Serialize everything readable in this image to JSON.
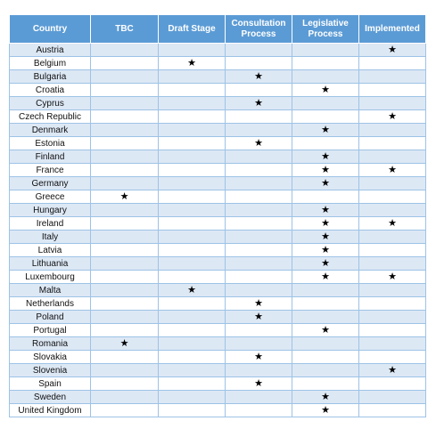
{
  "table": {
    "headers": [
      "Country",
      "TBC",
      "Draft Stage",
      "Consultation Process",
      "Legislative Process",
      "Implemented"
    ],
    "mark_symbol": "★",
    "rows": [
      {
        "country": "Austria",
        "marks": [
          0,
          0,
          0,
          0,
          1
        ]
      },
      {
        "country": "Belgium",
        "marks": [
          0,
          1,
          0,
          0,
          0
        ]
      },
      {
        "country": "Bulgaria",
        "marks": [
          0,
          0,
          1,
          0,
          0
        ]
      },
      {
        "country": "Croatia",
        "marks": [
          0,
          0,
          0,
          1,
          0
        ]
      },
      {
        "country": "Cyprus",
        "marks": [
          0,
          0,
          1,
          0,
          0
        ]
      },
      {
        "country": "Czech Republic",
        "marks": [
          0,
          0,
          0,
          0,
          1
        ]
      },
      {
        "country": "Denmark",
        "marks": [
          0,
          0,
          0,
          1,
          0
        ]
      },
      {
        "country": "Estonia",
        "marks": [
          0,
          0,
          1,
          0,
          0
        ]
      },
      {
        "country": "Finland",
        "marks": [
          0,
          0,
          0,
          1,
          0
        ]
      },
      {
        "country": "France",
        "marks": [
          0,
          0,
          0,
          1,
          1
        ]
      },
      {
        "country": "Germany",
        "marks": [
          0,
          0,
          0,
          1,
          0
        ]
      },
      {
        "country": "Greece",
        "marks": [
          1,
          0,
          0,
          0,
          0
        ]
      },
      {
        "country": "Hungary",
        "marks": [
          0,
          0,
          0,
          1,
          0
        ]
      },
      {
        "country": "Ireland",
        "marks": [
          0,
          0,
          0,
          1,
          1
        ]
      },
      {
        "country": "Italy",
        "marks": [
          0,
          0,
          0,
          1,
          0
        ]
      },
      {
        "country": "Latvia",
        "marks": [
          0,
          0,
          0,
          1,
          0
        ]
      },
      {
        "country": "Lithuania",
        "marks": [
          0,
          0,
          0,
          1,
          0
        ]
      },
      {
        "country": "Luxembourg",
        "marks": [
          0,
          0,
          0,
          1,
          1
        ]
      },
      {
        "country": "Malta",
        "marks": [
          0,
          1,
          0,
          0,
          0
        ]
      },
      {
        "country": "Netherlands",
        "marks": [
          0,
          0,
          1,
          0,
          0
        ]
      },
      {
        "country": "Poland",
        "marks": [
          0,
          0,
          1,
          0,
          0
        ]
      },
      {
        "country": "Portugal",
        "marks": [
          0,
          0,
          0,
          1,
          0
        ]
      },
      {
        "country": "Romania",
        "marks": [
          1,
          0,
          0,
          0,
          0
        ]
      },
      {
        "country": "Slovakia",
        "marks": [
          0,
          0,
          1,
          0,
          0
        ]
      },
      {
        "country": "Slovenia",
        "marks": [
          0,
          0,
          0,
          0,
          1
        ]
      },
      {
        "country": "Spain",
        "marks": [
          0,
          0,
          1,
          0,
          0
        ]
      },
      {
        "country": "Sweden",
        "marks": [
          0,
          0,
          0,
          1,
          0
        ]
      },
      {
        "country": "United Kingdom",
        "marks": [
          0,
          0,
          0,
          1,
          0
        ]
      }
    ]
  },
  "colors": {
    "header_bg": "#5b9bd5",
    "header_text": "#ffffff",
    "band": "#dde8f5",
    "grid": "#9dc3e6"
  }
}
